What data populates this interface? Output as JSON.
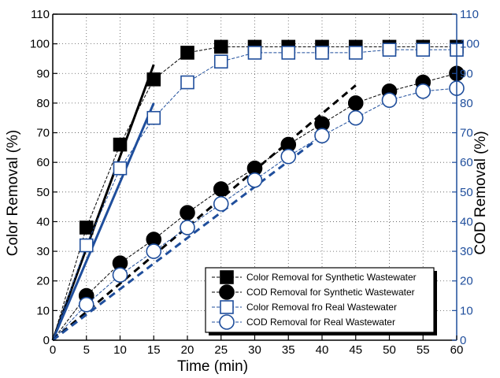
{
  "chart_data": {
    "type": "scatter",
    "xlabel": "Time (min)",
    "ylabel_left": "Color Removal (%)",
    "ylabel_right": "COD Removal (%)",
    "xlim": [
      0,
      60
    ],
    "ylim": [
      0,
      110
    ],
    "x_ticks": [
      0,
      5,
      10,
      15,
      20,
      25,
      30,
      35,
      40,
      45,
      50,
      55,
      60
    ],
    "y_ticks": [
      0,
      10,
      20,
      30,
      40,
      50,
      60,
      70,
      80,
      90,
      100,
      110
    ],
    "grid": true,
    "legend_position": "bottom-right",
    "colors": {
      "black": "#000000",
      "blue": "#1f4e9c"
    },
    "series": [
      {
        "name": "Color Removal for Synthetic Wastewater",
        "marker": "square-filled",
        "axis": "left",
        "color": "#000000",
        "x": [
          0,
          5,
          10,
          15,
          20,
          25,
          30,
          35,
          40,
          45,
          50,
          55,
          60
        ],
        "y": [
          0,
          38,
          66,
          88,
          97,
          99,
          99,
          99,
          99,
          99,
          99,
          99,
          99
        ]
      },
      {
        "name": "COD Removal for Synthetic Wastewater",
        "marker": "circle-filled",
        "axis": "right",
        "color": "#000000",
        "x": [
          0,
          5,
          10,
          15,
          20,
          25,
          30,
          35,
          40,
          45,
          50,
          55,
          60
        ],
        "y": [
          0,
          15,
          26,
          34,
          43,
          51,
          58,
          66,
          73,
          80,
          84,
          87,
          90
        ]
      },
      {
        "name": "Color Removal fro Real Wastewater",
        "marker": "square-open",
        "axis": "left",
        "color": "#1f4e9c",
        "x": [
          0,
          5,
          10,
          15,
          20,
          25,
          30,
          35,
          40,
          45,
          50,
          55,
          60
        ],
        "y": [
          0,
          32,
          58,
          75,
          87,
          94,
          97,
          97,
          97,
          97,
          98,
          98,
          98
        ]
      },
      {
        "name": "COD Removal for Real Wastewater",
        "marker": "circle-open",
        "axis": "right",
        "color": "#1f4e9c",
        "x": [
          0,
          5,
          10,
          15,
          20,
          25,
          30,
          35,
          40,
          45,
          50,
          55,
          60
        ],
        "y": [
          0,
          12,
          22,
          30,
          38,
          46,
          54,
          62,
          69,
          75,
          81,
          84,
          85
        ]
      }
    ],
    "fit_lines": [
      {
        "color": "#000000",
        "style": "solid",
        "x": [
          0,
          15
        ],
        "y": [
          0,
          93
        ]
      },
      {
        "color": "#1f4e9c",
        "style": "solid",
        "x": [
          0,
          15
        ],
        "y": [
          0,
          80
        ]
      },
      {
        "color": "#000000",
        "style": "dashed",
        "x": [
          0,
          45
        ],
        "y": [
          0,
          86
        ]
      },
      {
        "color": "#1f4e9c",
        "style": "dashed",
        "x": [
          0,
          40
        ],
        "y": [
          0,
          69
        ]
      }
    ]
  }
}
